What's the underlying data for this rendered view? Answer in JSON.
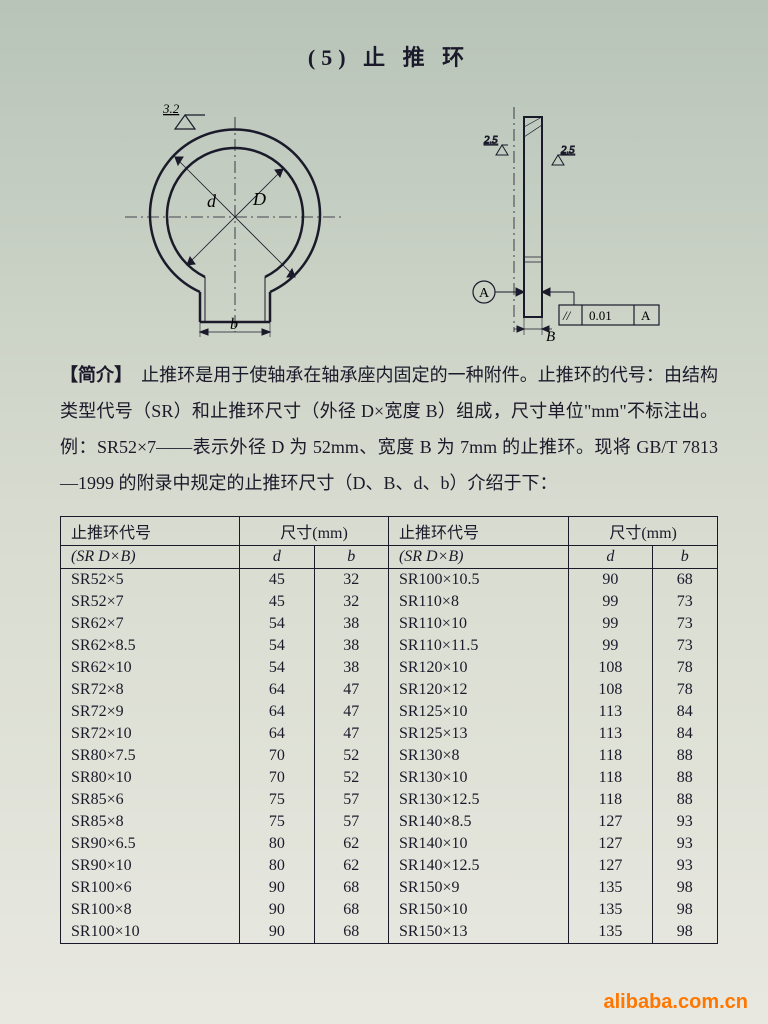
{
  "title": "(5) 止 推 环",
  "diagram": {
    "surface_value": "3.2",
    "side_surface": "2.5",
    "dim_D": "D",
    "dim_d": "d",
    "dim_b": "b",
    "dim_B": "B",
    "datum": "A",
    "tol_sym": "//",
    "tol_val": "0.01",
    "tol_ref": "A"
  },
  "intro_label": "【简介】",
  "intro_text": "　止推环是用于使轴承在轴承座内固定的一种附件。止推环的代号：由结构类型代号（SR）和止推环尺寸（外径 D×宽度 B）组成，尺寸单位\"mm\"不标注出。例：SR52×7——表示外径 D 为 52mm、宽度 B 为 7mm 的止推环。现将 GB/T 7813—1999 的附录中规定的止推环尺寸（D、B、d、b）介绍于下：",
  "table": {
    "header": {
      "code_top": "止推环代号",
      "code_bot": "(SR D×B)",
      "dim_top": "尺寸(mm)",
      "d": "d",
      "b": "b"
    },
    "left": [
      [
        "SR52×5",
        "45",
        "32"
      ],
      [
        "SR52×7",
        "45",
        "32"
      ],
      [
        "SR62×7",
        "54",
        "38"
      ],
      [
        "SR62×8.5",
        "54",
        "38"
      ],
      [
        "SR62×10",
        "54",
        "38"
      ],
      [
        "SR72×8",
        "64",
        "47"
      ],
      [
        "SR72×9",
        "64",
        "47"
      ],
      [
        "SR72×10",
        "64",
        "47"
      ],
      [
        "SR80×7.5",
        "70",
        "52"
      ],
      [
        "SR80×10",
        "70",
        "52"
      ],
      [
        "SR85×6",
        "75",
        "57"
      ],
      [
        "SR85×8",
        "75",
        "57"
      ],
      [
        "SR90×6.5",
        "80",
        "62"
      ],
      [
        "SR90×10",
        "80",
        "62"
      ],
      [
        "SR100×6",
        "90",
        "68"
      ],
      [
        "SR100×8",
        "90",
        "68"
      ],
      [
        "SR100×10",
        "90",
        "68"
      ]
    ],
    "right": [
      [
        "SR100×10.5",
        "90",
        "68"
      ],
      [
        "SR110×8",
        "99",
        "73"
      ],
      [
        "SR110×10",
        "99",
        "73"
      ],
      [
        "SR110×11.5",
        "99",
        "73"
      ],
      [
        "SR120×10",
        "108",
        "78"
      ],
      [
        "SR120×12",
        "108",
        "78"
      ],
      [
        "SR125×10",
        "113",
        "84"
      ],
      [
        "SR125×13",
        "113",
        "84"
      ],
      [
        "SR130×8",
        "118",
        "88"
      ],
      [
        "SR130×10",
        "118",
        "88"
      ],
      [
        "SR130×12.5",
        "118",
        "88"
      ],
      [
        "SR140×8.5",
        "127",
        "93"
      ],
      [
        "SR140×10",
        "127",
        "93"
      ],
      [
        "SR140×12.5",
        "127",
        "93"
      ],
      [
        "SR150×9",
        "135",
        "98"
      ],
      [
        "SR150×10",
        "135",
        "98"
      ],
      [
        "SR150×13",
        "135",
        "98"
      ]
    ]
  },
  "watermark": "alibaba.com.cn",
  "style": {
    "stroke": "#1a1a2a",
    "stroke_thin": 1,
    "stroke_thick": 2.5,
    "font_label": 14
  }
}
